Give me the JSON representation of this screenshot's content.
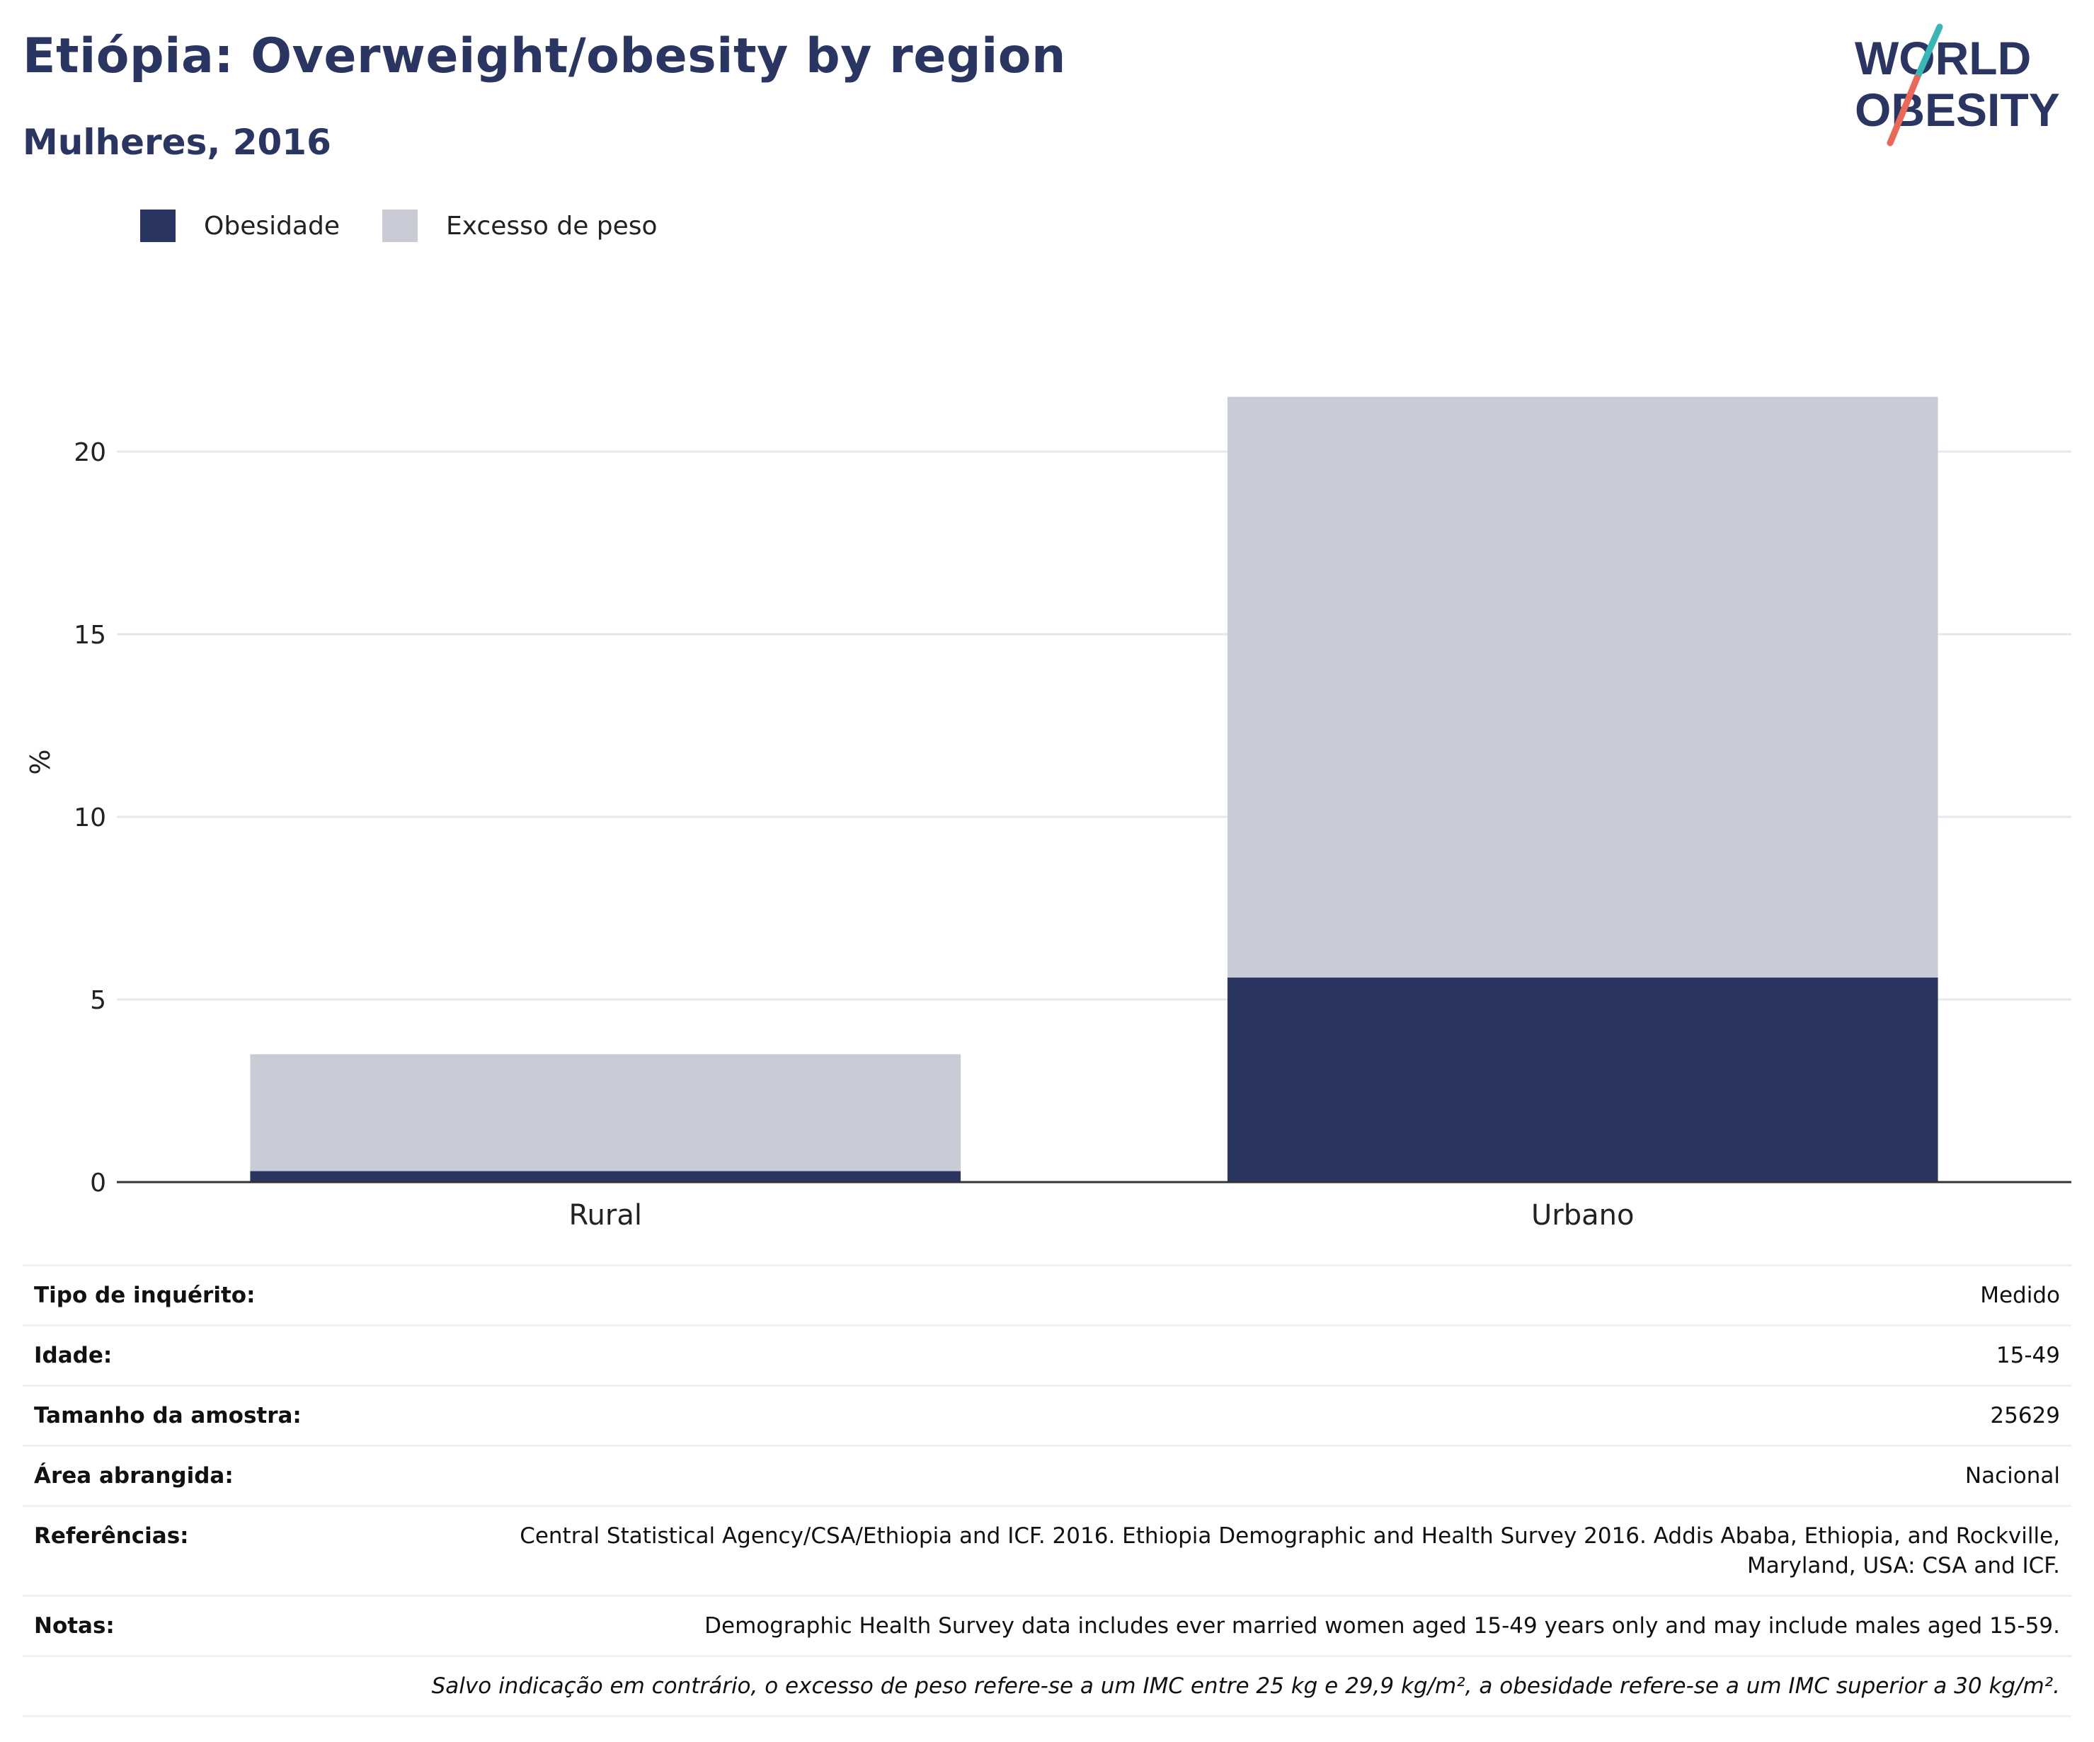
{
  "header": {
    "title": "Etiópia: Overweight/obesity by region",
    "subtitle": "Mulheres, 2016"
  },
  "logo": {
    "line1": "WORLD",
    "line2": "OBESITY",
    "colors": {
      "text": "#2a3561",
      "slash_top": "#3bb5b5",
      "slash_bottom": "#e8685a"
    }
  },
  "colors": {
    "obesity": "#2a3561",
    "overweight": "#c9cbd6",
    "grid": "#e6e8ef",
    "axis": "#333333"
  },
  "chart_data": {
    "type": "bar",
    "stacked": true,
    "categories": [
      "Rural",
      "Urbano"
    ],
    "series": [
      {
        "name": "Obesidade",
        "values": [
          0.3,
          5.6
        ],
        "color": "#2a3561"
      },
      {
        "name": "Excesso de peso",
        "values": [
          3.2,
          15.9
        ],
        "color": "#c9cbd6"
      }
    ],
    "totals": [
      3.5,
      21.5
    ],
    "ylabel": "%",
    "xlabel": "",
    "ylim": [
      0,
      23
    ],
    "yticks": [
      0,
      5,
      10,
      15,
      20
    ],
    "grid": true,
    "legend_position": "top-left"
  },
  "info_table": {
    "rows": [
      {
        "label": "Tipo de inquérito:",
        "value": "Medido"
      },
      {
        "label": "Idade:",
        "value": "15-49"
      },
      {
        "label": "Tamanho da amostra:",
        "value": "25629"
      },
      {
        "label": "Área abrangida:",
        "value": "Nacional"
      },
      {
        "label": "Referências:",
        "value": "Central Statistical Agency/CSA/Ethiopia and ICF. 2016. Ethiopia Demographic and Health Survey 2016. Addis Ababa, Ethiopia, and Rockville, Maryland, USA: CSA and ICF."
      },
      {
        "label": "Notas:",
        "value": "Demographic Health Survey data includes ever married women aged 15-49 years only and may include males aged 15-59."
      }
    ],
    "footnote": "Salvo indicação em contrário, o excesso de peso refere-se a um IMC entre 25 kg e 29,9 kg/m², a obesidade refere-se a um IMC superior a 30 kg/m²."
  }
}
